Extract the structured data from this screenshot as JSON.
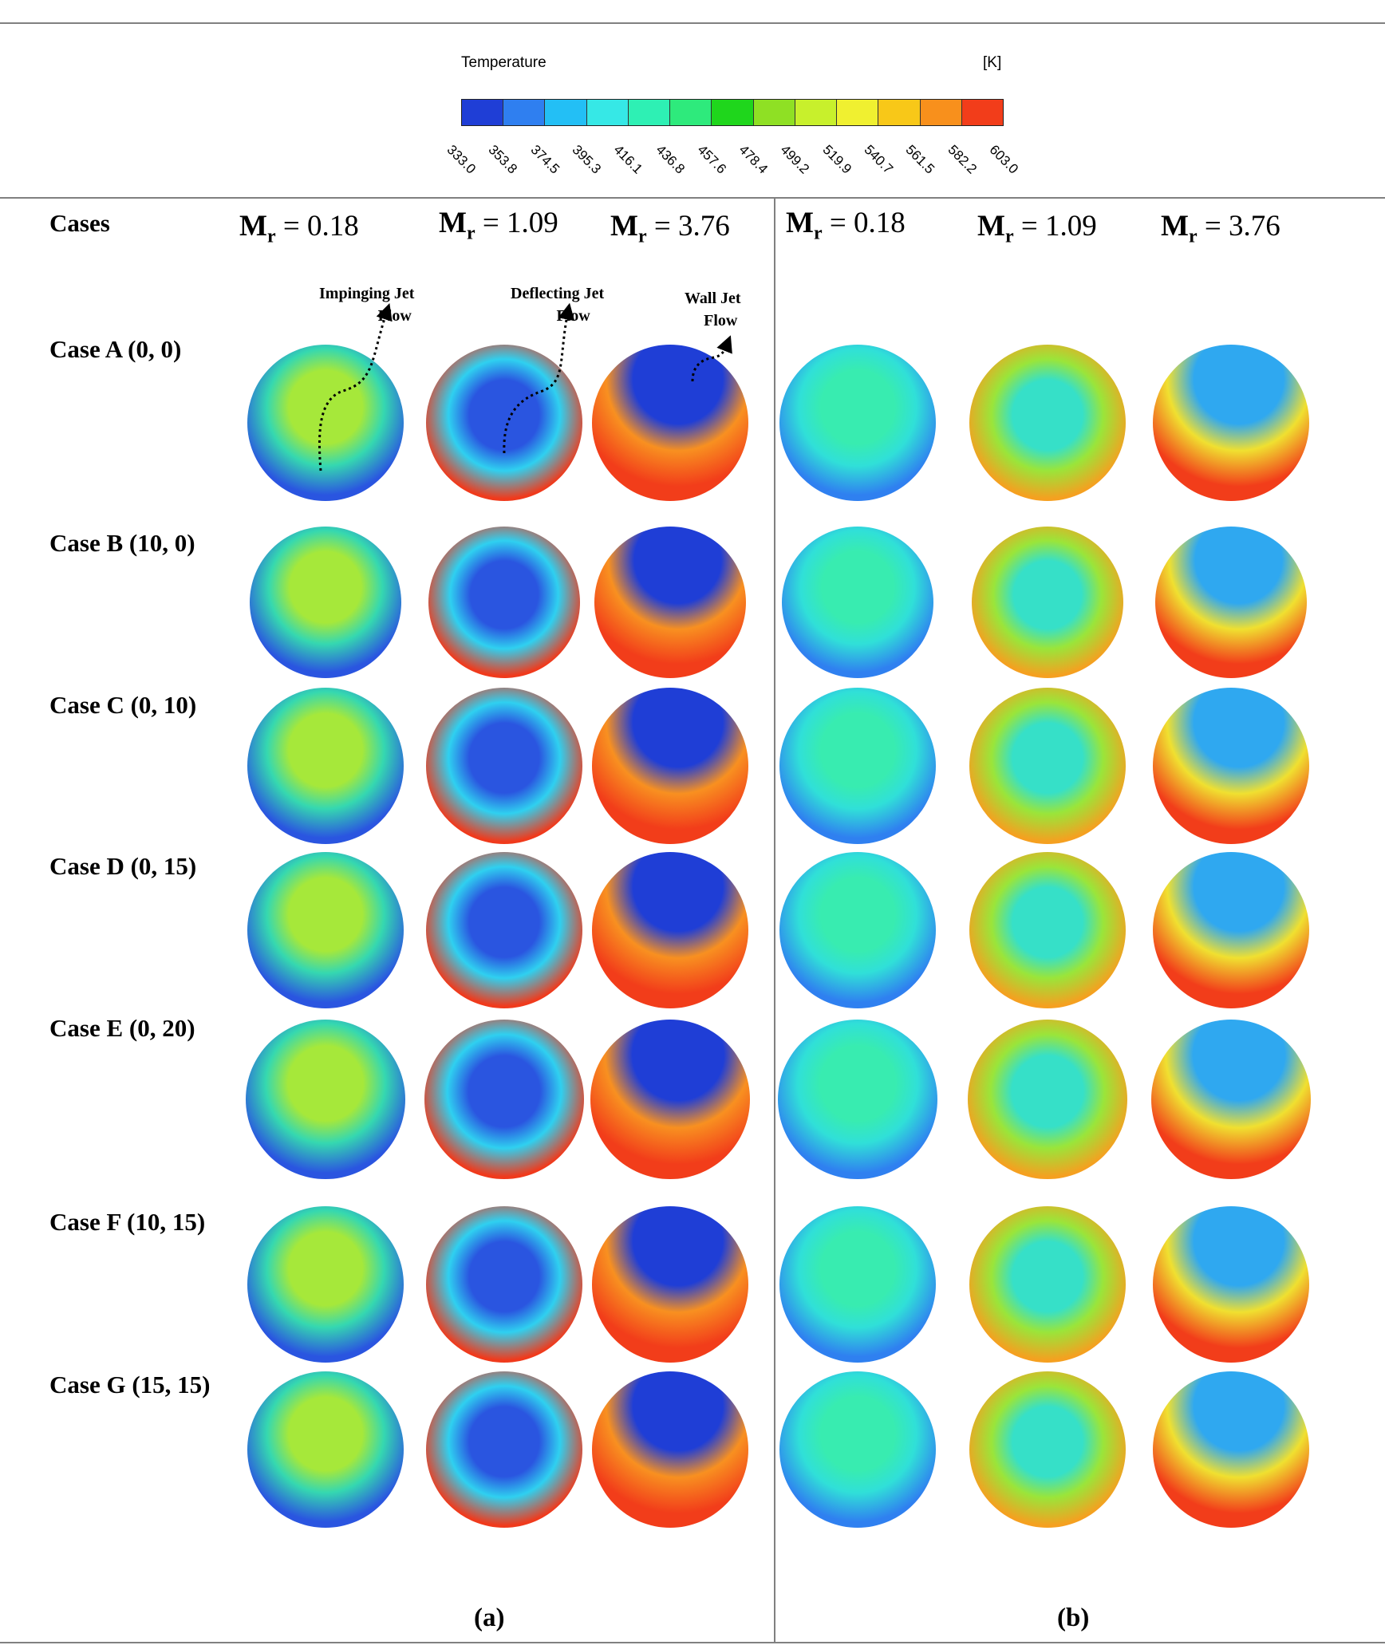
{
  "legend": {
    "title": "Temperature",
    "unit": "[K]",
    "ticks": [
      "333.0",
      "353.8",
      "374.5",
      "395.3",
      "416.1",
      "436.8",
      "457.6",
      "478.4",
      "499.2",
      "519.9",
      "540.7",
      "561.5",
      "582.2",
      "603.0"
    ],
    "colors": [
      "#1f3ed6",
      "#2f7ff0",
      "#23bff5",
      "#36e8e6",
      "#2ef0b4",
      "#2eea7c",
      "#1fd61c",
      "#8fe024",
      "#c8f02c",
      "#f0f030",
      "#f8c818",
      "#f8901c",
      "#f23d1a"
    ]
  },
  "header": {
    "cases": "Cases"
  },
  "columns": [
    {
      "symbol": "M",
      "sub": "r",
      "value": " = 0.18"
    },
    {
      "symbol": "M",
      "sub": "r",
      "value": " = 1.09"
    },
    {
      "symbol": "M",
      "sub": "r",
      "value": " = 3.76"
    },
    {
      "symbol": "M",
      "sub": "r",
      "value": " = 0.18"
    },
    {
      "symbol": "M",
      "sub": "r",
      "value": " = 1.09"
    },
    {
      "symbol": "M",
      "sub": "r",
      "value": " = 3.76"
    }
  ],
  "annotations": [
    {
      "line1": "Impinging Jet",
      "line2": "Flow"
    },
    {
      "line1": "Deflecting Jet",
      "line2": "Flow"
    },
    {
      "line1": "Wall Jet",
      "line2": "Flow"
    }
  ],
  "cases": [
    {
      "label": "Case A (0, 0)"
    },
    {
      "label": "Case B (10, 0)"
    },
    {
      "label": "Case C (0, 10)"
    },
    {
      "label": "Case D (0, 15)"
    },
    {
      "label": "Case E (0, 20)"
    },
    {
      "label": "Case F (10, 15)"
    },
    {
      "label": "Case G (15, 15)"
    }
  ],
  "panels": [
    "(a)",
    "(b)"
  ],
  "contour_styles": {
    "a_low": {
      "outer": "#2a55e0",
      "mid": "#35d8b0",
      "inner": "#a6e83a"
    },
    "a_mid": {
      "outer": "#f03a1c",
      "mid": "#2fd0f0",
      "inner": "#2a55e0"
    },
    "a_high": {
      "outer": "#f23d1a",
      "mid": "#f89020",
      "inner": "#1f3ed6"
    },
    "b_low": {
      "outer": "#2f80f0",
      "mid": "#30e0d8",
      "inner": "#38ecb0"
    },
    "b_mid": {
      "outer": "#f5a020",
      "mid": "#9ae53a",
      "inner": "#36e0c8"
    },
    "b_high": {
      "outer": "#f23d1a",
      "mid": "#f0e030",
      "inner": "#2fa8f0"
    }
  }
}
